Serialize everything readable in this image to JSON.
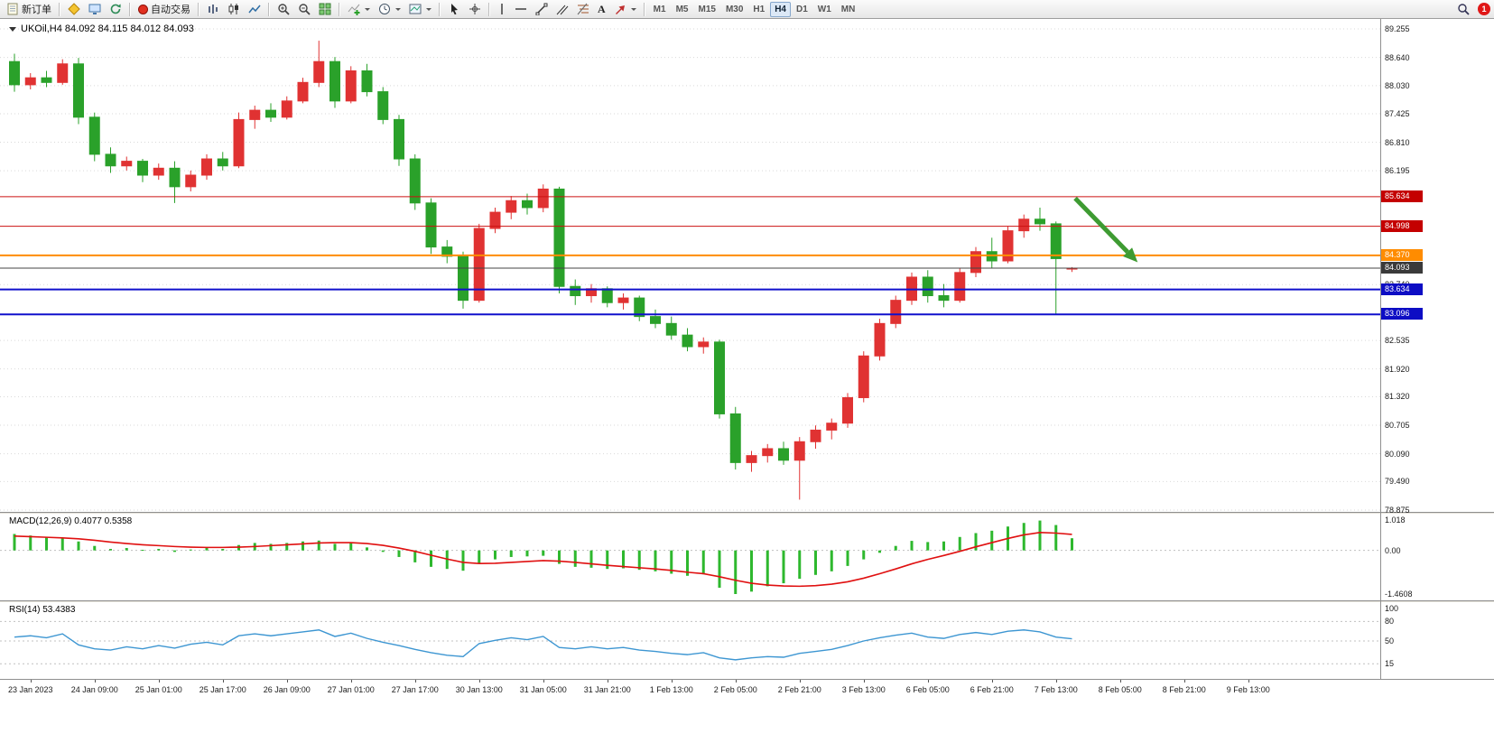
{
  "toolbar": {
    "new_order": "新订单",
    "autotrading": "自动交易",
    "text_tool": "A",
    "timeframes": [
      "M1",
      "M5",
      "M15",
      "M30",
      "H1",
      "H4",
      "D1",
      "W1",
      "MN"
    ],
    "active_timeframe": "H4",
    "notification_count": "1"
  },
  "chart_data": {
    "type": "candlestick",
    "symbol": "UKOil",
    "period": "H4",
    "title": "UKOil,H4 84.092 84.115 84.012 84.093",
    "current_bar": {
      "open": 84.092,
      "high": 84.115,
      "low": 84.012,
      "close": 84.093
    },
    "ylim": [
      78.875,
      89.255
    ],
    "y_axis_labels": [
      "89.255",
      "88.640",
      "88.030",
      "87.425",
      "86.810",
      "86.195",
      "83.740",
      "82.535",
      "81.920",
      "81.320",
      "80.705",
      "80.090",
      "79.490",
      "78.875"
    ],
    "hlines": [
      {
        "price": 85.634,
        "label": "85.634",
        "color": "#cc1010",
        "badge": "#c40000",
        "width": 1
      },
      {
        "price": 84.998,
        "label": "84.998",
        "color": "#cc1010",
        "badge": "#c40000",
        "width": 1
      },
      {
        "price": 84.37,
        "label": "84.370",
        "color": "#ff8c00",
        "badge": "#ff8c00",
        "width": 2
      },
      {
        "price": 84.093,
        "label": "84.093",
        "color": "#444444",
        "badge": "#3a3a3a",
        "width": 1
      },
      {
        "price": 83.634,
        "label": "83.634",
        "color": "#1010cc",
        "badge": "#0d0dc4",
        "width": 2
      },
      {
        "price": 83.096,
        "label": "83.096",
        "color": "#1010cc",
        "badge": "#0d0dc4",
        "width": 2
      }
    ],
    "arrow_annotation": {
      "x1_bar": 66.2,
      "y1_price": 85.6,
      "x2_bar": 70.1,
      "y2_price": 84.22,
      "color": "#3e9b32"
    },
    "ticks": [
      [
        1,
        "23 Jan 2023"
      ],
      [
        5,
        "24 Jan 09:00"
      ],
      [
        9,
        "25 Jan 01:00"
      ],
      [
        13,
        "25 Jan 17:00"
      ],
      [
        17,
        "26 Jan 09:00"
      ],
      [
        21,
        "27 Jan 01:00"
      ],
      [
        25,
        "27 Jan 17:00"
      ],
      [
        29,
        "30 Jan 13:00"
      ],
      [
        33,
        "31 Jan 05:00"
      ],
      [
        37,
        "31 Jan 21:00"
      ],
      [
        41,
        "1 Feb 13:00"
      ],
      [
        45,
        "2 Feb 05:00"
      ],
      [
        49,
        "2 Feb 21:00"
      ],
      [
        53,
        "3 Feb 13:00"
      ],
      [
        57,
        "6 Feb 05:00"
      ],
      [
        61,
        "6 Feb 21:00"
      ],
      [
        65,
        "7 Feb 13:00"
      ],
      [
        69,
        "8 Feb 05:00"
      ],
      [
        73,
        "8 Feb 21:00"
      ],
      [
        77,
        "9 Feb 13:00"
      ]
    ],
    "candles": [
      [
        88.55,
        88.72,
        87.9,
        88.05
      ],
      [
        88.05,
        88.3,
        87.95,
        88.2
      ],
      [
        88.2,
        88.35,
        88.0,
        88.1
      ],
      [
        88.1,
        88.6,
        88.05,
        88.5
      ],
      [
        88.5,
        88.63,
        87.2,
        87.35
      ],
      [
        87.35,
        87.45,
        86.4,
        86.55
      ],
      [
        86.55,
        86.7,
        86.15,
        86.3
      ],
      [
        86.3,
        86.5,
        86.2,
        86.4
      ],
      [
        86.4,
        86.45,
        85.95,
        86.1
      ],
      [
        86.1,
        86.35,
        86.0,
        86.25
      ],
      [
        86.25,
        86.4,
        85.5,
        85.85
      ],
      [
        85.85,
        86.2,
        85.75,
        86.1
      ],
      [
        86.1,
        86.55,
        86.0,
        86.45
      ],
      [
        86.45,
        86.6,
        86.2,
        86.3
      ],
      [
        86.3,
        87.45,
        86.25,
        87.3
      ],
      [
        87.3,
        87.6,
        87.1,
        87.5
      ],
      [
        87.5,
        87.65,
        87.25,
        87.35
      ],
      [
        87.35,
        87.8,
        87.3,
        87.7
      ],
      [
        87.7,
        88.2,
        87.65,
        88.1
      ],
      [
        88.1,
        89.0,
        88.0,
        88.55
      ],
      [
        88.55,
        88.65,
        87.55,
        87.7
      ],
      [
        87.7,
        88.45,
        87.65,
        88.35
      ],
      [
        88.35,
        88.5,
        87.8,
        87.9
      ],
      [
        87.9,
        88.0,
        87.2,
        87.3
      ],
      [
        87.3,
        87.4,
        86.3,
        86.45
      ],
      [
        86.45,
        86.55,
        85.35,
        85.5
      ],
      [
        85.5,
        85.6,
        84.4,
        84.55
      ],
      [
        84.55,
        84.7,
        84.2,
        84.35
      ],
      [
        84.35,
        84.45,
        83.22,
        83.4
      ],
      [
        83.4,
        85.05,
        83.35,
        84.95
      ],
      [
        84.95,
        85.4,
        84.85,
        85.3
      ],
      [
        85.3,
        85.65,
        85.15,
        85.55
      ],
      [
        85.55,
        85.7,
        85.25,
        85.4
      ],
      [
        85.4,
        85.9,
        85.3,
        85.8
      ],
      [
        85.8,
        85.85,
        83.55,
        83.7
      ],
      [
        83.7,
        83.85,
        83.3,
        83.5
      ],
      [
        83.5,
        83.75,
        83.35,
        83.65
      ],
      [
        83.65,
        83.7,
        83.25,
        83.35
      ],
      [
        83.35,
        83.55,
        83.2,
        83.45
      ],
      [
        83.45,
        83.5,
        82.95,
        83.05
      ],
      [
        83.05,
        83.2,
        82.8,
        82.9
      ],
      [
        82.9,
        83.05,
        82.55,
        82.65
      ],
      [
        82.65,
        82.8,
        82.3,
        82.4
      ],
      [
        82.4,
        82.6,
        82.25,
        82.5
      ],
      [
        82.5,
        82.55,
        80.85,
        80.95
      ],
      [
        80.95,
        81.1,
        79.75,
        79.9
      ],
      [
        79.9,
        80.15,
        79.7,
        80.05
      ],
      [
        80.05,
        80.3,
        79.9,
        80.2
      ],
      [
        80.2,
        80.35,
        79.85,
        79.95
      ],
      [
        79.95,
        80.45,
        79.1,
        80.35
      ],
      [
        80.35,
        80.7,
        80.2,
        80.6
      ],
      [
        80.6,
        80.85,
        80.4,
        80.75
      ],
      [
        80.75,
        81.4,
        80.65,
        81.3
      ],
      [
        81.3,
        82.3,
        81.2,
        82.2
      ],
      [
        82.2,
        83.0,
        82.1,
        82.9
      ],
      [
        82.9,
        83.5,
        82.8,
        83.4
      ],
      [
        83.4,
        84.0,
        83.3,
        83.9
      ],
      [
        83.9,
        84.05,
        83.35,
        83.5
      ],
      [
        83.5,
        83.75,
        83.25,
        83.4
      ],
      [
        83.4,
        84.1,
        83.35,
        84.0
      ],
      [
        84.0,
        84.55,
        83.9,
        84.45
      ],
      [
        84.45,
        84.75,
        84.1,
        84.25
      ],
      [
        84.25,
        85.0,
        84.2,
        84.9
      ],
      [
        84.9,
        85.25,
        84.75,
        85.15
      ],
      [
        85.15,
        85.4,
        84.9,
        85.05
      ],
      [
        85.05,
        85.1,
        83.1,
        84.3
      ],
      [
        84.092,
        84.115,
        84.012,
        84.093
      ]
    ],
    "macd": {
      "label": "MACD(12,26,9) 0.4077 0.5358",
      "value": 0.4077,
      "signal_value": 0.5358,
      "scale_labels": [
        "1.018",
        "0.00",
        "-1.4608"
      ],
      "scale_max": 1.018,
      "scale_min": -1.4608,
      "histogram": [
        0.55,
        0.5,
        0.45,
        0.42,
        0.3,
        0.15,
        0.05,
        0.08,
        0.02,
        0.05,
        -0.05,
        0.03,
        0.1,
        0.05,
        0.18,
        0.25,
        0.22,
        0.25,
        0.3,
        0.33,
        0.22,
        0.25,
        0.1,
        -0.05,
        -0.22,
        -0.4,
        -0.55,
        -0.62,
        -0.68,
        -0.45,
        -0.3,
        -0.22,
        -0.2,
        -0.18,
        -0.45,
        -0.55,
        -0.58,
        -0.62,
        -0.6,
        -0.65,
        -0.7,
        -0.78,
        -0.85,
        -0.8,
        -1.25,
        -1.4608,
        -1.38,
        -1.2,
        -1.1,
        -0.95,
        -0.82,
        -0.7,
        -0.52,
        -0.3,
        -0.08,
        0.15,
        0.32,
        0.28,
        0.3,
        0.45,
        0.58,
        0.66,
        0.8,
        0.92,
        1.0,
        0.85,
        0.4077
      ],
      "signal_line": [
        0.48,
        0.46,
        0.44,
        0.42,
        0.39,
        0.34,
        0.28,
        0.23,
        0.19,
        0.16,
        0.13,
        0.11,
        0.1,
        0.1,
        0.11,
        0.13,
        0.16,
        0.19,
        0.22,
        0.25,
        0.26,
        0.26,
        0.23,
        0.17,
        0.08,
        -0.03,
        -0.16,
        -0.29,
        -0.4,
        -0.44,
        -0.43,
        -0.4,
        -0.37,
        -0.34,
        -0.36,
        -0.4,
        -0.45,
        -0.5,
        -0.54,
        -0.58,
        -0.62,
        -0.67,
        -0.73,
        -0.78,
        -0.88,
        -1.0,
        -1.1,
        -1.16,
        -1.19,
        -1.2,
        -1.18,
        -1.13,
        -1.05,
        -0.93,
        -0.78,
        -0.62,
        -0.45,
        -0.3,
        -0.17,
        -0.03,
        0.12,
        0.26,
        0.4,
        0.52,
        0.6,
        0.58,
        0.5358
      ]
    },
    "rsi": {
      "label": "RSI(14) 53.4383",
      "value": 53.4383,
      "range": [
        0,
        100
      ],
      "levels": [
        80,
        50,
        15
      ],
      "scale_labels": [
        "100",
        "80",
        "50",
        "15"
      ],
      "values": [
        56,
        58,
        55,
        61,
        44,
        38,
        36,
        41,
        38,
        43,
        39,
        45,
        48,
        44,
        58,
        61,
        58,
        61,
        64,
        67,
        57,
        62,
        54,
        48,
        43,
        37,
        32,
        28,
        26,
        46,
        51,
        55,
        52,
        57,
        40,
        38,
        41,
        38,
        40,
        36,
        34,
        31,
        29,
        32,
        24,
        21,
        24,
        26,
        25,
        31,
        34,
        37,
        43,
        50,
        55,
        59,
        62,
        56,
        54,
        60,
        63,
        60,
        65,
        67,
        64,
        56,
        53.4383
      ]
    },
    "colors": {
      "bull": "#e03232",
      "bear": "#2aa12a",
      "macd_hist": "#2eb82e",
      "macd_signal": "#e01010",
      "rsi_line": "#3d96d2",
      "grid": "#d9d9d9",
      "background": "#ffffff",
      "arrow": "#3e9b32"
    }
  }
}
